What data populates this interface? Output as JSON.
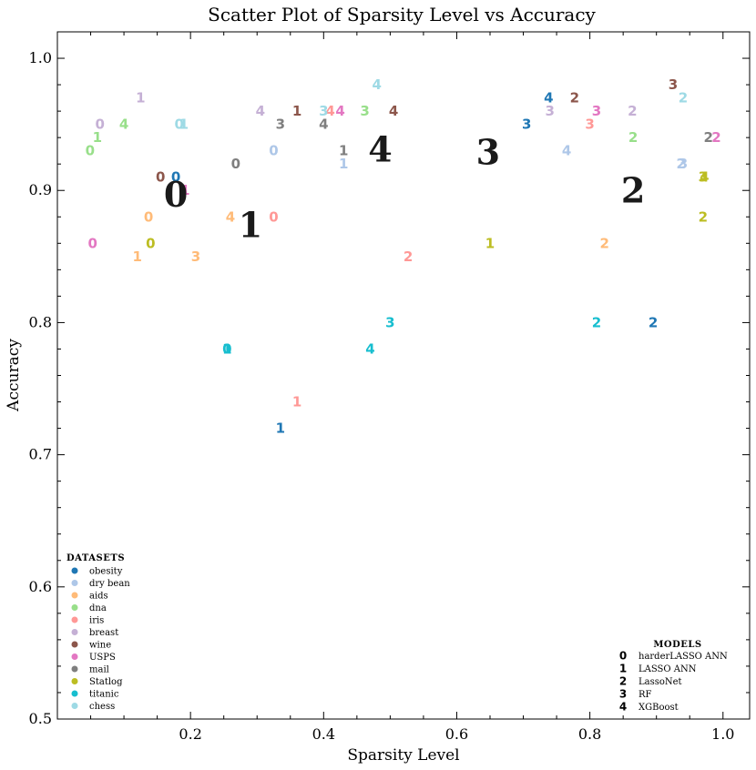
{
  "chart_data": {
    "type": "scatter",
    "title": "Scatter Plot of Sparsity Level vs Accuracy",
    "xlabel": "Sparsity Level",
    "ylabel": "Accuracy",
    "xlim": [
      0.0,
      1.04
    ],
    "ylim": [
      0.5,
      1.02
    ],
    "xticks": [
      0.2,
      0.4,
      0.6,
      0.8,
      1.0
    ],
    "xtick_labels": [
      "0.2",
      "0.4",
      "0.6",
      "0.8",
      "1.0"
    ],
    "yticks": [
      0.5,
      0.6,
      0.7,
      0.8,
      0.9,
      1.0
    ],
    "ytick_labels": [
      "0.5",
      "0.6",
      "0.7",
      "0.8",
      "0.9",
      "1.0"
    ],
    "grid": false,
    "datasets": [
      {
        "name": "obesity",
        "color": "#1f77b4"
      },
      {
        "name": "dry bean",
        "color": "#aec7e8"
      },
      {
        "name": "aids",
        "color": "#ffbb78"
      },
      {
        "name": "dna",
        "color": "#98df8a"
      },
      {
        "name": "iris",
        "color": "#ff9896"
      },
      {
        "name": "breast",
        "color": "#c5b0d5"
      },
      {
        "name": "wine",
        "color": "#8c564b"
      },
      {
        "name": "USPS",
        "color": "#e377c2"
      },
      {
        "name": "mail",
        "color": "#7f7f7f"
      },
      {
        "name": "Statlog",
        "color": "#bcbd22"
      },
      {
        "name": "titanic",
        "color": "#17becf"
      },
      {
        "name": "chess",
        "color": "#9edae5"
      }
    ],
    "models": [
      {
        "marker": "0",
        "name": "harderLASSO ANN"
      },
      {
        "marker": "1",
        "name": "LASSO ANN"
      },
      {
        "marker": "2",
        "name": "LassoNet"
      },
      {
        "marker": "3",
        "name": "RF"
      },
      {
        "marker": "4",
        "name": "XGBoost"
      }
    ],
    "points": [
      {
        "dataset": "obesity",
        "model": "0",
        "x": 0.178,
        "y": 0.91
      },
      {
        "dataset": "obesity",
        "model": "1",
        "x": 0.335,
        "y": 0.72
      },
      {
        "dataset": "obesity",
        "model": "2",
        "x": 0.895,
        "y": 0.8
      },
      {
        "dataset": "obesity",
        "model": "3",
        "x": 0.705,
        "y": 0.95
      },
      {
        "dataset": "obesity",
        "model": "4",
        "x": 0.738,
        "y": 0.97
      },
      {
        "dataset": "dry bean",
        "model": "0",
        "x": 0.325,
        "y": 0.93
      },
      {
        "dataset": "dry bean",
        "model": "1",
        "x": 0.43,
        "y": 0.92
      },
      {
        "dataset": "dry bean",
        "model": "2",
        "x": 0.937,
        "y": 0.92
      },
      {
        "dataset": "dry bean",
        "model": "3",
        "x": 0.94,
        "y": 0.92
      },
      {
        "dataset": "dry bean",
        "model": "4",
        "x": 0.765,
        "y": 0.93
      },
      {
        "dataset": "aids",
        "model": "0",
        "x": 0.137,
        "y": 0.88
      },
      {
        "dataset": "aids",
        "model": "1",
        "x": 0.12,
        "y": 0.85
      },
      {
        "dataset": "aids",
        "model": "2",
        "x": 0.822,
        "y": 0.86
      },
      {
        "dataset": "aids",
        "model": "3",
        "x": 0.208,
        "y": 0.85
      },
      {
        "dataset": "aids",
        "model": "4",
        "x": 0.26,
        "y": 0.88
      },
      {
        "dataset": "dna",
        "model": "0",
        "x": 0.049,
        "y": 0.93
      },
      {
        "dataset": "dna",
        "model": "1",
        "x": 0.06,
        "y": 0.94
      },
      {
        "dataset": "dna",
        "model": "2",
        "x": 0.865,
        "y": 0.94
      },
      {
        "dataset": "dna",
        "model": "3",
        "x": 0.462,
        "y": 0.96
      },
      {
        "dataset": "dna",
        "model": "4",
        "x": 0.1,
        "y": 0.95
      },
      {
        "dataset": "iris",
        "model": "0",
        "x": 0.325,
        "y": 0.88
      },
      {
        "dataset": "iris",
        "model": "1",
        "x": 0.36,
        "y": 0.74
      },
      {
        "dataset": "iris",
        "model": "2",
        "x": 0.527,
        "y": 0.85
      },
      {
        "dataset": "iris",
        "model": "3",
        "x": 0.8,
        "y": 0.95
      },
      {
        "dataset": "iris",
        "model": "4",
        "x": 0.41,
        "y": 0.96
      },
      {
        "dataset": "breast",
        "model": "0",
        "x": 0.064,
        "y": 0.95
      },
      {
        "dataset": "breast",
        "model": "1",
        "x": 0.125,
        "y": 0.97
      },
      {
        "dataset": "breast",
        "model": "2",
        "x": 0.864,
        "y": 0.96
      },
      {
        "dataset": "breast",
        "model": "3",
        "x": 0.74,
        "y": 0.96
      },
      {
        "dataset": "breast",
        "model": "4",
        "x": 0.305,
        "y": 0.96
      },
      {
        "dataset": "wine",
        "model": "0",
        "x": 0.155,
        "y": 0.91
      },
      {
        "dataset": "wine",
        "model": "1",
        "x": 0.36,
        "y": 0.96
      },
      {
        "dataset": "wine",
        "model": "2",
        "x": 0.777,
        "y": 0.97
      },
      {
        "dataset": "wine",
        "model": "3",
        "x": 0.925,
        "y": 0.98
      },
      {
        "dataset": "wine",
        "model": "4",
        "x": 0.505,
        "y": 0.96
      },
      {
        "dataset": "USPS",
        "model": "0",
        "x": 0.053,
        "y": 0.86
      },
      {
        "dataset": "USPS",
        "model": "1",
        "x": 0.192,
        "y": 0.9
      },
      {
        "dataset": "USPS",
        "model": "2",
        "x": 0.99,
        "y": 0.94
      },
      {
        "dataset": "USPS",
        "model": "3",
        "x": 0.81,
        "y": 0.96
      },
      {
        "dataset": "USPS",
        "model": "4",
        "x": 0.425,
        "y": 0.96
      },
      {
        "dataset": "mail",
        "model": "0",
        "x": 0.268,
        "y": 0.92
      },
      {
        "dataset": "mail",
        "model": "1",
        "x": 0.43,
        "y": 0.93
      },
      {
        "dataset": "mail",
        "model": "2",
        "x": 0.978,
        "y": 0.94
      },
      {
        "dataset": "mail",
        "model": "3",
        "x": 0.335,
        "y": 0.95
      },
      {
        "dataset": "mail",
        "model": "4",
        "x": 0.4,
        "y": 0.95
      },
      {
        "dataset": "Statlog",
        "model": "0",
        "x": 0.14,
        "y": 0.86
      },
      {
        "dataset": "Statlog",
        "model": "1",
        "x": 0.65,
        "y": 0.86
      },
      {
        "dataset": "Statlog",
        "model": "2",
        "x": 0.97,
        "y": 0.88
      },
      {
        "dataset": "Statlog",
        "model": "3",
        "x": 0.97,
        "y": 0.91
      },
      {
        "dataset": "Statlog",
        "model": "4",
        "x": 0.972,
        "y": 0.91
      },
      {
        "dataset": "titanic",
        "model": "0",
        "x": 0.255,
        "y": 0.78
      },
      {
        "dataset": "titanic",
        "model": "1",
        "x": 0.255,
        "y": 0.78
      },
      {
        "dataset": "titanic",
        "model": "2",
        "x": 0.81,
        "y": 0.8
      },
      {
        "dataset": "titanic",
        "model": "3",
        "x": 0.5,
        "y": 0.8
      },
      {
        "dataset": "titanic",
        "model": "4",
        "x": 0.47,
        "y": 0.78
      },
      {
        "dataset": "chess",
        "model": "0",
        "x": 0.183,
        "y": 0.95
      },
      {
        "dataset": "chess",
        "model": "1",
        "x": 0.19,
        "y": 0.95
      },
      {
        "dataset": "chess",
        "model": "2",
        "x": 0.94,
        "y": 0.97
      },
      {
        "dataset": "chess",
        "model": "3",
        "x": 0.4,
        "y": 0.96
      },
      {
        "dataset": "chess",
        "model": "4",
        "x": 0.48,
        "y": 0.98
      }
    ],
    "centroids": [
      {
        "model": "0",
        "x": 0.178,
        "y": 0.897
      },
      {
        "model": "1",
        "x": 0.29,
        "y": 0.874
      },
      {
        "model": "2",
        "x": 0.865,
        "y": 0.9
      },
      {
        "model": "3",
        "x": 0.647,
        "y": 0.929
      },
      {
        "model": "4",
        "x": 0.485,
        "y": 0.931
      }
    ],
    "legend_datasets": {
      "title": "DATASETS",
      "placement": "lower-left"
    },
    "legend_models": {
      "title": "MODELS",
      "placement": "lower-right"
    }
  }
}
